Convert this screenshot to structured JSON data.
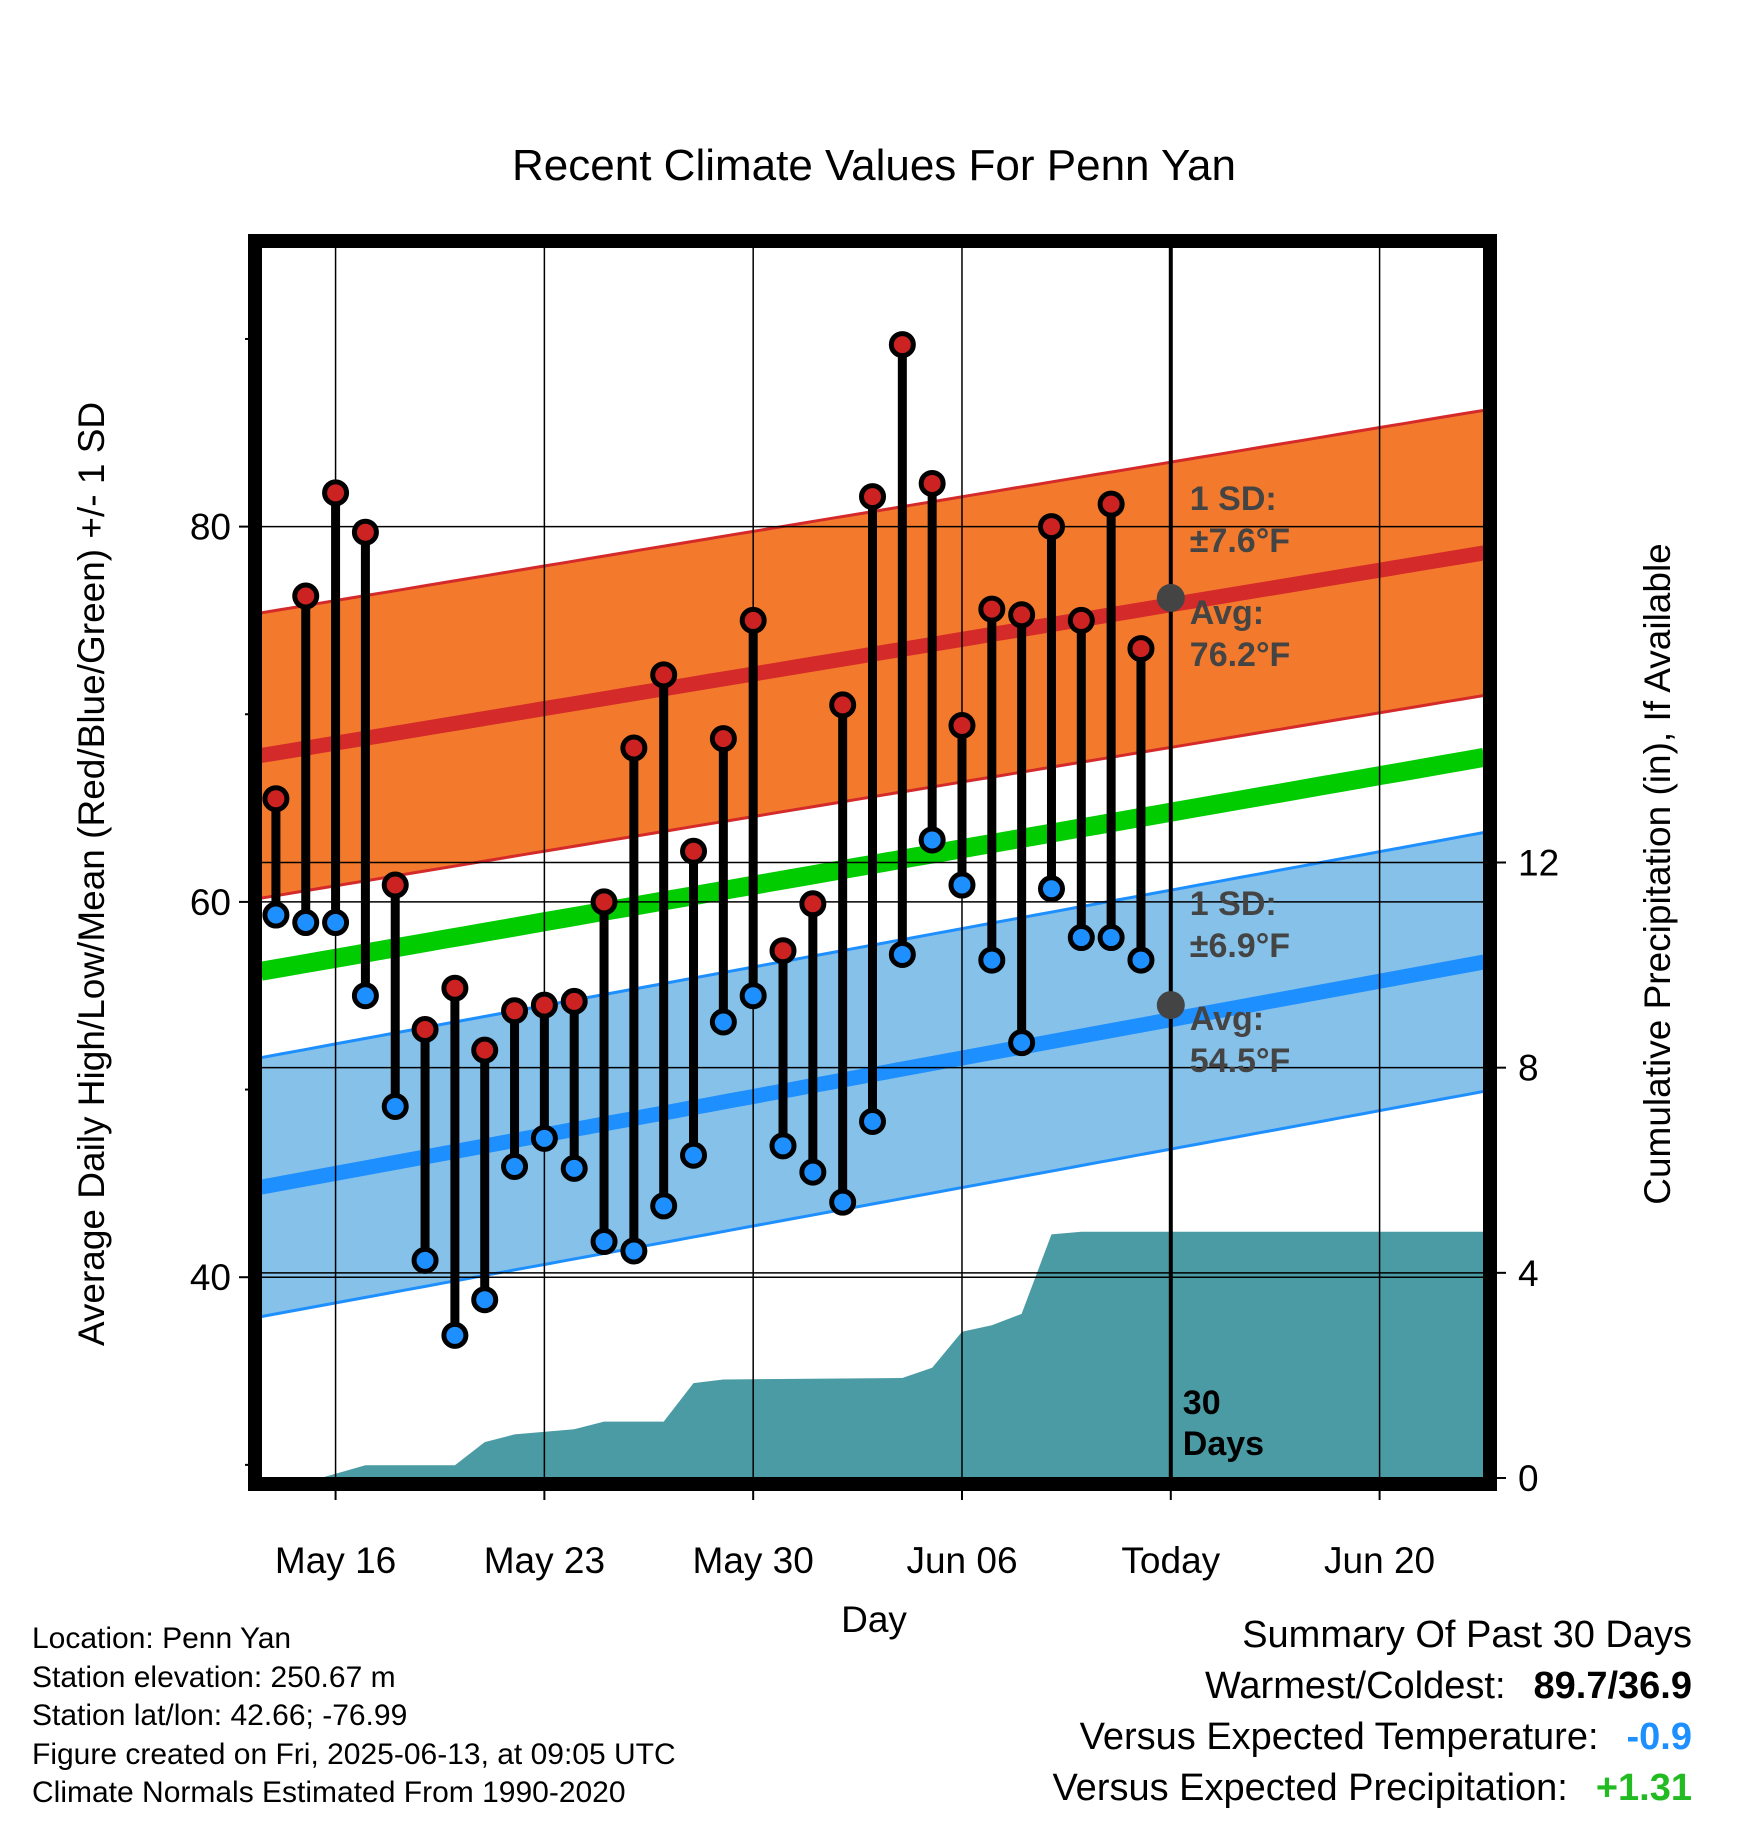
{
  "chart_data": {
    "type": "line",
    "title": "Recent Climate Values For Penn Yan",
    "xlabel": "Day",
    "ylabel": "Average Daily High/Low/Mean (Red/Blue/Green) +/- 1 SD",
    "y2label": "Cumulative Precipitation (in), If Available",
    "ylim": [
      29.3,
      94.9
    ],
    "y_ticks": [
      40,
      60,
      80
    ],
    "y2lim": [
      0,
      24
    ],
    "y2_ticks": [
      0,
      4,
      8,
      12
    ],
    "x_range_days": [
      -30.5,
      10.5
    ],
    "x_ticks": [
      {
        "label": "May 16",
        "day": -28
      },
      {
        "label": "May 23",
        "day": -21
      },
      {
        "label": "May 30",
        "day": -14
      },
      {
        "label": "Jun 06",
        "day": -7
      },
      {
        "label": "Today",
        "day": 0
      },
      {
        "label": "Jun 20",
        "day": 7
      }
    ],
    "today_label": "30\nDays",
    "normal_high": {
      "start": 67.8,
      "end": 78.6,
      "sd": 7.6
    },
    "normal_low": {
      "start": 44.8,
      "end": 56.8,
      "sd": 6.9
    },
    "normal_mean": {
      "start": 56.3,
      "end": 67.7
    },
    "daily": [
      {
        "day": -30,
        "high": 65.5,
        "low": 59.3
      },
      {
        "day": -29,
        "high": 76.3,
        "low": 58.9
      },
      {
        "day": -28,
        "high": 81.8,
        "low": 58.9
      },
      {
        "day": -27,
        "high": 79.7,
        "low": 55.0
      },
      {
        "day": -26,
        "high": 60.9,
        "low": 49.1
      },
      {
        "day": -25,
        "high": 53.2,
        "low": 40.9
      },
      {
        "day": -24,
        "high": 55.4,
        "low": 36.9
      },
      {
        "day": -23,
        "high": 52.1,
        "low": 38.8
      },
      {
        "day": -22,
        "high": 54.2,
        "low": 45.9
      },
      {
        "day": -21,
        "high": 54.5,
        "low": 47.4
      },
      {
        "day": -20,
        "high": 54.7,
        "low": 45.8
      },
      {
        "day": -19,
        "high": 60.0,
        "low": 41.9
      },
      {
        "day": -18,
        "high": 68.2,
        "low": 41.4
      },
      {
        "day": -17,
        "high": 72.1,
        "low": 43.8
      },
      {
        "day": -16,
        "high": 62.7,
        "low": 46.5
      },
      {
        "day": -15,
        "high": 68.7,
        "low": 53.6
      },
      {
        "day": -14,
        "high": 75.0,
        "low": 55.0
      },
      {
        "day": -13,
        "high": 57.4,
        "low": 47.0
      },
      {
        "day": -12,
        "high": 59.9,
        "low": 45.6
      },
      {
        "day": -11,
        "high": 70.5,
        "low": 44.0
      },
      {
        "day": -10,
        "high": 81.6,
        "low": 48.3
      },
      {
        "day": -9,
        "high": 89.7,
        "low": 57.2
      },
      {
        "day": -8,
        "high": 82.3,
        "low": 63.3
      },
      {
        "day": -7,
        "high": 69.4,
        "low": 60.9
      },
      {
        "day": -6,
        "high": 75.6,
        "low": 56.9
      },
      {
        "day": -5,
        "high": 75.3,
        "low": 52.5
      },
      {
        "day": -4,
        "high": 80.0,
        "low": 60.7
      },
      {
        "day": -3,
        "high": 75.0,
        "low": 58.1
      },
      {
        "day": -2,
        "high": 81.2,
        "low": 58.1
      },
      {
        "day": -1,
        "high": 73.5,
        "low": 56.9
      }
    ],
    "precip_cumulative": [
      {
        "day": -28.5,
        "value": 0.0
      },
      {
        "day": -27,
        "value": 0.25
      },
      {
        "day": -24,
        "value": 0.25
      },
      {
        "day": -23,
        "value": 0.7
      },
      {
        "day": -22,
        "value": 0.85
      },
      {
        "day": -20,
        "value": 0.95
      },
      {
        "day": -19,
        "value": 1.1
      },
      {
        "day": -17,
        "value": 1.1
      },
      {
        "day": -16,
        "value": 1.85
      },
      {
        "day": -15,
        "value": 1.92
      },
      {
        "day": -9,
        "value": 1.95
      },
      {
        "day": -8,
        "value": 2.15
      },
      {
        "day": -7,
        "value": 2.85
      },
      {
        "day": -6,
        "value": 2.98
      },
      {
        "day": -5,
        "value": 3.2
      },
      {
        "day": -4,
        "value": 4.75
      },
      {
        "day": -3,
        "value": 4.8
      },
      {
        "day": 10.5,
        "value": 4.8
      }
    ],
    "annotations": {
      "high_sd_line1": "1 SD:",
      "high_sd_line2": "±7.6°F",
      "high_avg_line1": "Avg:",
      "high_avg_line2": "76.2°F",
      "low_sd_line1": "1 SD:",
      "low_sd_line2": "±6.9°F",
      "low_avg_line1": "Avg:",
      "low_avg_line2": "54.5°F",
      "today_avg_high": 76.2,
      "today_avg_low": 54.5
    },
    "colors": {
      "high_band": "#f37a2c",
      "high_line": "#d42a2a",
      "low_band": "#85c1e9",
      "low_line": "#1e8fff",
      "mean_line": "#00cc00",
      "precip_fill": "#4a9ba4",
      "high_dot": "#cc2222",
      "low_dot": "#1e8fff",
      "annotation": "#444444"
    },
    "grid": true
  },
  "info": {
    "location": "Location: Penn Yan",
    "elevation": "Station elevation: 250.67 m",
    "latlon": "Station lat/lon: 42.66; -76.99",
    "created": "Figure created on Fri, 2025-06-13, at 09:05 UTC",
    "normals": "Climate Normals Estimated From 1990-2020"
  },
  "summary": {
    "heading": "Summary Of Past 30 Days",
    "warm_cold_label": "Warmest/Coldest:",
    "warm_cold_value": "89.7/36.9",
    "temp_label": "Versus Expected Temperature:",
    "temp_value": "-0.9",
    "temp_color": "#1e8fff",
    "precip_label": "Versus Expected Precipitation:",
    "precip_value": "+1.31",
    "precip_color": "#22bb22"
  }
}
